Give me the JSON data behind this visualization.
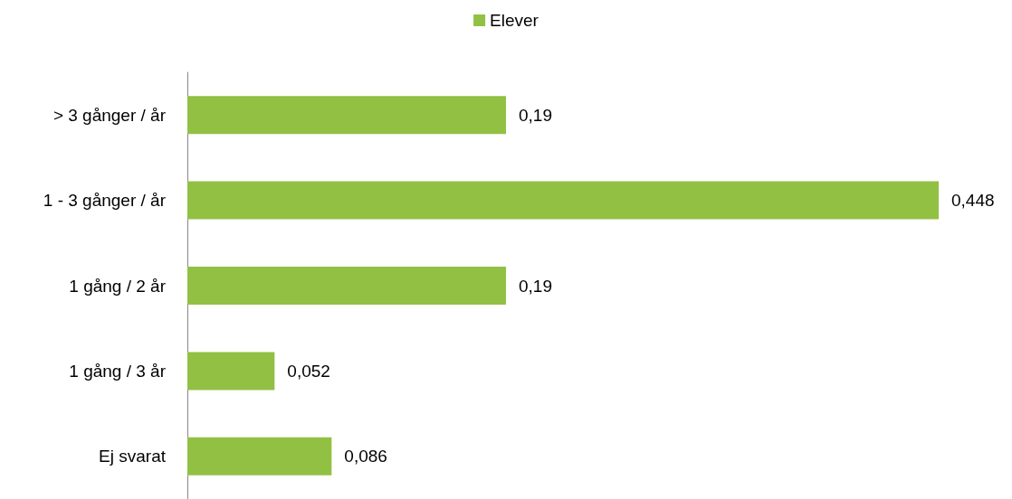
{
  "chart_data": {
    "type": "bar",
    "orientation": "horizontal",
    "tick_labels": "y",
    "legend": "top",
    "categories": [
      "> 3 gånger / år",
      "1 - 3 gånger / år",
      "1 gång / 2 år",
      "1 gång / 3 år",
      "Ej svarat"
    ],
    "series": [
      {
        "name": "Elever",
        "color": "#92c043",
        "values": [
          0.19,
          0.448,
          0.19,
          0.052,
          0.086
        ],
        "value_labels": [
          "0,19",
          "0,448",
          "0,19",
          "0,052",
          "0,086"
        ]
      }
    ]
  }
}
